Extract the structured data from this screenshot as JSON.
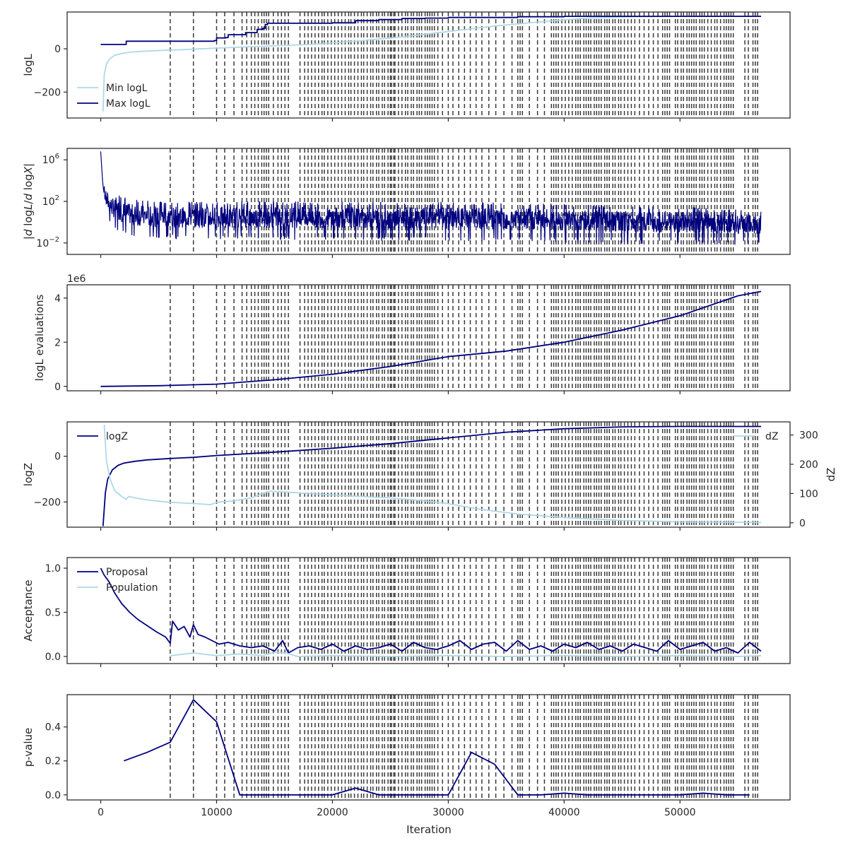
{
  "colors": {
    "dark": "#00007f",
    "light": "#add8e6",
    "vline": "#3a3a3a",
    "axis": "#262626"
  },
  "xaxis": {
    "label": "Iteration",
    "range": [
      -2900,
      59500
    ],
    "ticks": [
      0,
      10000,
      20000,
      30000,
      40000,
      50000
    ]
  },
  "vlines": [
    6000,
    8000,
    10000,
    10700,
    11500,
    12200,
    12600,
    13000,
    13300,
    13600,
    13900,
    14100,
    14300,
    14500,
    14900,
    15300,
    15600,
    15900,
    16200,
    17200,
    17600,
    17900,
    18200,
    18500,
    18800,
    19100,
    19300,
    19600,
    19900,
    20200,
    20500,
    20800,
    21100,
    21400,
    21600,
    21900,
    22200,
    22500,
    22700,
    23000,
    23300,
    23500,
    23800,
    24000,
    24300,
    24500,
    24800,
    25000,
    25100,
    25300,
    25400,
    25700,
    26000,
    26300,
    26500,
    26800,
    27000,
    27300,
    27500,
    27700,
    28000,
    28200,
    28400,
    28600,
    28800,
    29100,
    29500,
    30000,
    30400,
    30900,
    31400,
    31900,
    32400,
    32900,
    33500,
    34100,
    34800,
    35500,
    36000,
    36200,
    36400,
    37000,
    37700,
    38300,
    38900,
    39100,
    39300,
    39500,
    39800,
    40100,
    40400,
    40700,
    41000,
    41200,
    41400,
    41700,
    41900,
    42100,
    42300,
    42600,
    42800,
    43000,
    43200,
    43500,
    43700,
    43900,
    44200,
    44400,
    44700,
    44900,
    45200,
    45500,
    45800,
    46100,
    46500,
    46900,
    47300,
    47700,
    48100,
    48500,
    48700,
    48900,
    49100,
    49600,
    49800,
    50100,
    50300,
    50600,
    50800,
    51000,
    51200,
    51400,
    51700,
    51900,
    52100,
    52400,
    52700,
    53000,
    53200,
    53500,
    53800,
    54000,
    54200,
    54400,
    54600,
    55600,
    55900,
    56300,
    56500,
    56700
  ],
  "chart_data": [
    {
      "type": "line",
      "ylabel": "logL",
      "ylim": [
        -320,
        170
      ],
      "yticks": [
        {
          "v": 0,
          "t": "0"
        },
        {
          "v": -200,
          "t": "−200"
        }
      ],
      "legend": {
        "placement": "bottom-left",
        "entries": [
          "Min logL",
          "Max logL"
        ]
      },
      "series": [
        {
          "name": "Min logL",
          "color": "light",
          "x": [
            200,
            300,
            500,
            800,
            1200,
            1800,
            2500,
            3500,
            5000,
            7000,
            10000,
            14000,
            18000,
            22000,
            26000,
            30000,
            34000,
            38000,
            42000,
            46000,
            50000,
            54000,
            57000
          ],
          "y": [
            -290,
            -120,
            -70,
            -45,
            -30,
            -22,
            -16,
            -12,
            -8,
            -4,
            3,
            12,
            20,
            35,
            55,
            80,
            105,
            125,
            142,
            148,
            150,
            150,
            150
          ]
        },
        {
          "name": "Max logL",
          "color": "dark",
          "step": true,
          "x": [
            0,
            2000,
            2200,
            6000,
            9800,
            10000,
            10800,
            11000,
            12500,
            13500,
            14000,
            14200,
            14400,
            20000,
            22000,
            24000,
            26000,
            28000,
            30000,
            36000,
            40000,
            57000
          ],
          "y": [
            20,
            20,
            35,
            35,
            38,
            50,
            52,
            65,
            75,
            90,
            95,
            112,
            118,
            120,
            130,
            135,
            140,
            142,
            145,
            148,
            150,
            150
          ]
        }
      ]
    },
    {
      "type": "line",
      "ylabel": "|d logL/d logX|",
      "scale": "log",
      "ylim": [
        -3.1,
        7.1
      ],
      "yticks": [
        {
          "v": 6,
          "t": "10",
          "e": "6"
        },
        {
          "v": 2,
          "t": "10",
          "e": "2"
        },
        {
          "v": -2,
          "t": "10",
          "e": "−2"
        }
      ],
      "series": [
        {
          "name": "",
          "color": "dark",
          "envelope": true,
          "x": [
            0,
            200,
            500,
            1000,
            2000,
            3000,
            5000,
            10000,
            15000,
            20000,
            25000,
            30000,
            35000,
            40000,
            45000,
            50000,
            55000,
            57000
          ],
          "upper": [
            6.8,
            4.2,
            3.2,
            2.8,
            2.4,
            2.2,
            2.0,
            2.0,
            2.0,
            2.0,
            2.0,
            2.0,
            1.9,
            1.8,
            1.6,
            1.5,
            1.3,
            1.2
          ],
          "lower": [
            3.0,
            2.0,
            0.5,
            -0.5,
            -1.2,
            -1.5,
            -1.6,
            -1.7,
            -1.7,
            -1.7,
            -1.8,
            -1.8,
            -1.9,
            -2.0,
            -2.1,
            -2.1,
            -2.2,
            -2.2
          ]
        }
      ]
    },
    {
      "type": "line",
      "ylabel": "logL evaluations",
      "offset_text": "1e6",
      "ylim": [
        -0.2,
        4.6
      ],
      "yticks": [
        {
          "v": 0,
          "t": "0"
        },
        {
          "v": 2,
          "t": "2"
        },
        {
          "v": 4,
          "t": "4"
        }
      ],
      "series": [
        {
          "name": "",
          "color": "dark",
          "x": [
            0,
            5000,
            10000,
            15000,
            20000,
            25000,
            30000,
            35000,
            40000,
            45000,
            50000,
            55000,
            57000
          ],
          "y": [
            0.0,
            0.03,
            0.1,
            0.3,
            0.55,
            0.9,
            1.35,
            1.6,
            2.0,
            2.55,
            3.2,
            4.1,
            4.3
          ]
        }
      ]
    },
    {
      "type": "line",
      "ylabel": "logZ",
      "ylabel2": "dZ",
      "ylim": [
        -310,
        150
      ],
      "yticks": [
        {
          "v": 0,
          "t": "0"
        },
        {
          "v": -200,
          "t": "−200"
        }
      ],
      "ylim2": [
        -15,
        345
      ],
      "yticks2": [
        {
          "v": 0,
          "t": "0"
        },
        {
          "v": 100,
          "t": "100"
        },
        {
          "v": 200,
          "t": "200"
        },
        {
          "v": 300,
          "t": "300"
        }
      ],
      "legend": {
        "placement": "top-left",
        "entries": [
          "logZ"
        ]
      },
      "legend2": {
        "placement": "top-right",
        "entries": [
          "dZ"
        ]
      },
      "series": [
        {
          "name": "logZ",
          "color": "dark",
          "axis": 1,
          "x": [
            200,
            400,
            600,
            1000,
            1500,
            2000,
            3000,
            4000,
            6000,
            8000,
            10000,
            15000,
            20000,
            25000,
            30000,
            35000,
            40000,
            45000,
            50000,
            57000
          ],
          "y": [
            -305,
            -160,
            -100,
            -60,
            -40,
            -30,
            -22,
            -16,
            -10,
            -5,
            3,
            18,
            35,
            55,
            80,
            105,
            120,
            128,
            130,
            130
          ]
        },
        {
          "name": "dZ",
          "color": "light",
          "axis": 2,
          "x": [
            300,
            500,
            800,
            1200,
            1800,
            2200,
            2400,
            3000,
            4000,
            6000,
            8000,
            9500,
            10000,
            11500,
            13000,
            14500,
            16000,
            20000,
            25000,
            28000,
            30000,
            33000,
            36000,
            40000,
            45000,
            50000,
            57000
          ],
          "y": [
            335,
            210,
            150,
            110,
            90,
            80,
            90,
            85,
            78,
            70,
            66,
            62,
            70,
            75,
            85,
            108,
            105,
            95,
            85,
            75,
            65,
            45,
            30,
            18,
            8,
            3,
            1
          ]
        }
      ]
    },
    {
      "type": "line",
      "ylabel": "Acceptance",
      "ylim": [
        -0.08,
        1.12
      ],
      "yticks": [
        {
          "v": 0,
          "t": "0.0"
        },
        {
          "v": 0.5,
          "t": "0.5"
        },
        {
          "v": 1,
          "t": "1.0"
        }
      ],
      "legend": {
        "placement": "top-left",
        "entries": [
          "Proposal",
          "Population"
        ]
      },
      "series": [
        {
          "name": "Proposal",
          "color": "dark",
          "x": [
            0,
            300,
            700,
            1200,
            1800,
            2500,
            3200,
            4000,
            4800,
            5600,
            6000,
            6200,
            6700,
            7200,
            7700,
            8000,
            8400,
            9000,
            9600,
            10200,
            11000,
            12000,
            13000,
            14000,
            15000,
            15700,
            16200,
            17000,
            18000,
            19000,
            20000,
            21000,
            22000,
            23000,
            24000,
            25000,
            26000,
            27000,
            28000,
            29000,
            30000,
            31000,
            32000,
            33000,
            34000,
            35000,
            36000,
            37000,
            38000,
            39000,
            40000,
            41000,
            42000,
            43000,
            44000,
            45000,
            46000,
            47000,
            48000,
            49000,
            50000,
            51000,
            52000,
            53000,
            54000,
            55000,
            56000,
            57000
          ],
          "y": [
            1.0,
            0.92,
            0.85,
            0.72,
            0.6,
            0.5,
            0.42,
            0.35,
            0.28,
            0.22,
            0.15,
            0.4,
            0.3,
            0.34,
            0.22,
            0.36,
            0.25,
            0.22,
            0.18,
            0.14,
            0.16,
            0.12,
            0.1,
            0.12,
            0.06,
            0.18,
            0.04,
            0.1,
            0.12,
            0.08,
            0.14,
            0.06,
            0.12,
            0.08,
            0.1,
            0.14,
            0.06,
            0.16,
            0.1,
            0.08,
            0.12,
            0.18,
            0.08,
            0.14,
            0.16,
            0.06,
            0.18,
            0.08,
            0.12,
            0.06,
            0.14,
            0.1,
            0.16,
            0.08,
            0.12,
            0.06,
            0.14,
            0.1,
            0.06,
            0.18,
            0.08,
            0.12,
            0.16,
            0.06,
            0.1,
            0.04,
            0.16,
            0.06
          ]
        },
        {
          "name": "Population",
          "color": "light",
          "x": [
            6000,
            8000,
            10000,
            12000,
            14000,
            15000,
            16000,
            17000,
            20000,
            25000,
            30000,
            35000,
            40000,
            45000,
            50000,
            55000,
            57000
          ],
          "y": [
            0.01,
            0.04,
            0.01,
            0.03,
            0.01,
            0.05,
            0.04,
            0.0,
            0.01,
            0.0,
            0.01,
            0.0,
            0.01,
            0.0,
            0.01,
            0.0,
            0.01
          ]
        }
      ]
    },
    {
      "type": "line",
      "ylabel": "p-value",
      "ylim": [
        -0.03,
        0.59
      ],
      "yticks": [
        {
          "v": 0,
          "t": "0.0"
        },
        {
          "v": 0.2,
          "t": "0.2"
        },
        {
          "v": 0.4,
          "t": "0.4"
        }
      ],
      "series": [
        {
          "name": "",
          "color": "dark",
          "x": [
            2000,
            4000,
            6000,
            8000,
            10000,
            12000,
            14000,
            16000,
            18000,
            20000,
            22000,
            24000,
            26000,
            28000,
            30000,
            32000,
            34000,
            36000,
            38000,
            40000,
            42000,
            44000,
            46000,
            48000,
            50000,
            52000,
            54000,
            56000
          ],
          "y": [
            0.2,
            0.25,
            0.31,
            0.56,
            0.43,
            0.0,
            0.0,
            0.0,
            0.0,
            0.0,
            0.04,
            0.0,
            0.0,
            0.0,
            0.0,
            0.25,
            0.18,
            0.0,
            0.0,
            0.01,
            0.0,
            0.0,
            0.0,
            0.0,
            0.0,
            0.01,
            0.0,
            0.0
          ]
        }
      ]
    }
  ]
}
